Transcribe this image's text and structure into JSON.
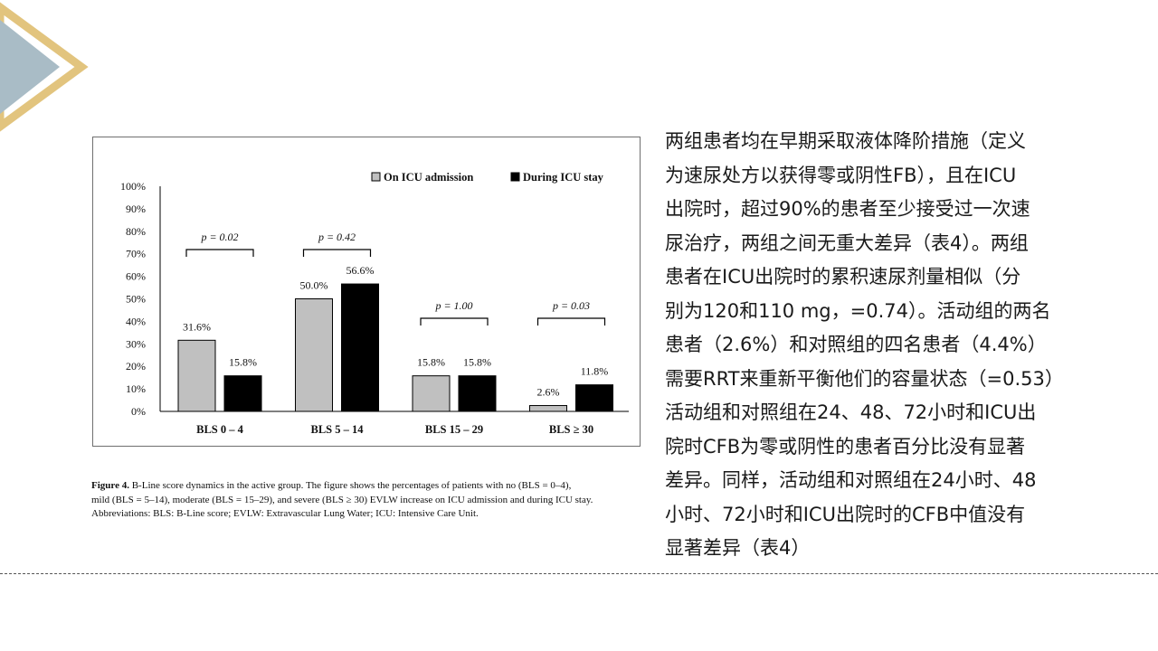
{
  "chart_data": {
    "type": "bar",
    "categories": [
      "BLS 0 – 4",
      "BLS 5 – 14",
      "BLS 15 – 29",
      "BLS ≥ 30"
    ],
    "series": [
      {
        "name": "On ICU admission",
        "values": [
          31.6,
          50.0,
          15.8,
          2.6
        ],
        "labels": [
          "31.6%",
          "50.0%",
          "15.8%",
          "2.6%"
        ],
        "color": "#c0c0c0"
      },
      {
        "name": "During ICU stay",
        "values": [
          15.8,
          56.6,
          15.8,
          11.8
        ],
        "labels": [
          "15.8%",
          "56.6%",
          "15.8%",
          "11.8%"
        ],
        "color": "#000000"
      }
    ],
    "yticks": [
      "0%",
      "10%",
      "20%",
      "30%",
      "40%",
      "50%",
      "60%",
      "70%",
      "80%",
      "90%",
      "100%"
    ],
    "ylim": [
      0,
      100
    ],
    "p_values": [
      "p = 0.02",
      "p = 0.42",
      "p = 1.00",
      "p = 0.03"
    ],
    "legend_position": "top-right",
    "grid": false
  },
  "caption": {
    "label": "Figure 4.",
    "lines": [
      " B-Line score dynamics in the active group. The figure shows the percentages of patients with no (BLS = 0–4),",
      "mild (BLS = 5–14), moderate (BLS = 15–29), and severe (BLS ≥ 30) EVLW increase on ICU admission and during ICU stay.",
      "Abbreviations: BLS: B-Line score; EVLW: Extravascular Lung Water; ICU: Intensive Care Unit."
    ]
  },
  "body_text": {
    "lines": [
      "两组患者均在早期采取液体降阶措施（定义",
      "为速尿处方以获得零或阴性FB），且在ICU",
      "出院时，超过90%的患者至少接受过一次速",
      "尿治疗，两组之间无重大差异（表4）。两组",
      "患者在ICU出院时的累积速尿剂量相似（分",
      "别为120和110 mg，=0.74）。活动组的两名",
      "患者（2.6%）和对照组的四名患者（4.4%）",
      "需要RRT来重新平衡他们的容量状态（=0.53）",
      "活动组和对照组在24、48、72小时和ICU出",
      "院时CFB为零或阴性的患者百分比没有显著",
      "差异。同样，活动组和对照组在24小时、48",
      "小时、72小时和ICU出院时的CFB中值没有",
      "显著差异（表4）"
    ]
  },
  "colors": {
    "triangle_fill": "#a9bcc6",
    "triangle_border": "#e2c47e"
  }
}
